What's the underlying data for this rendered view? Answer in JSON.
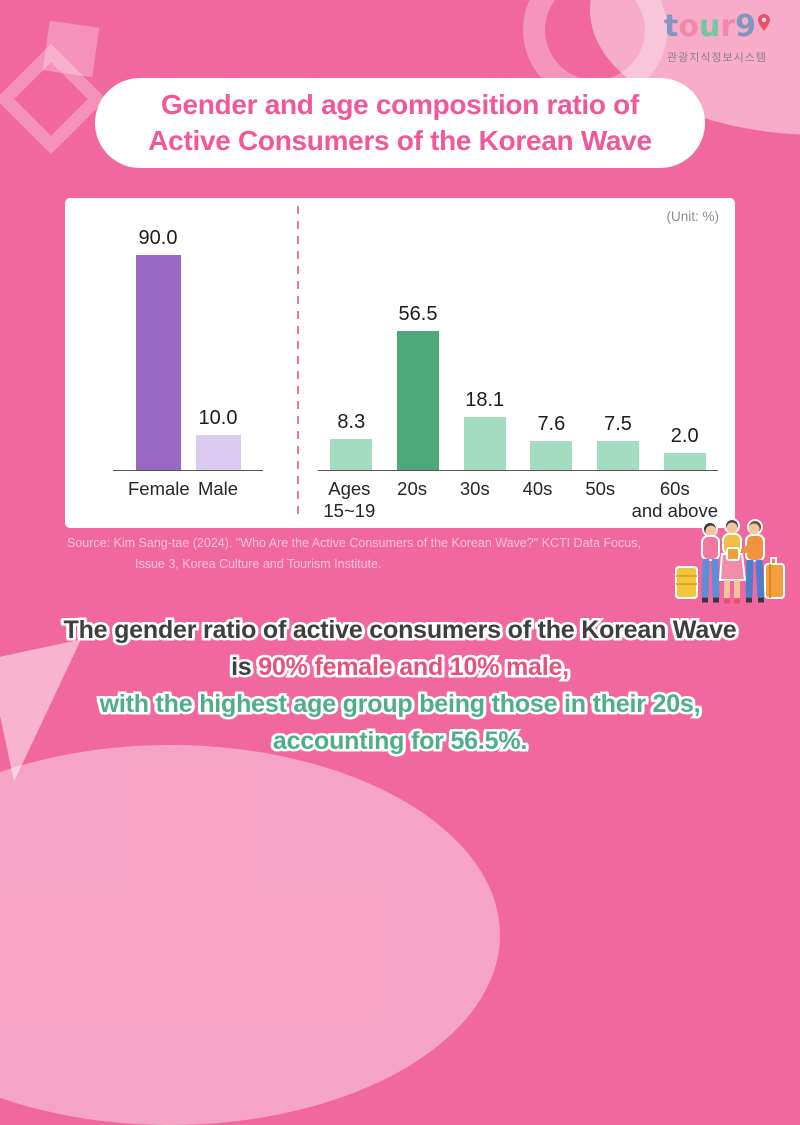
{
  "logo": {
    "letters": [
      {
        "ch": "t",
        "color": "#8596BE"
      },
      {
        "ch": "o",
        "color": "#F287AC"
      },
      {
        "ch": "u",
        "color": "#74C6A0"
      },
      {
        "ch": "r",
        "color": "#F287AC"
      },
      {
        "ch": "9",
        "color": "#8596BE"
      }
    ],
    "pin_color": "#E8526B",
    "subtitle": "관광지식정보시스템"
  },
  "title": {
    "line1": "Gender and age composition ratio of",
    "line2": "Active Consumers of the Korean Wave"
  },
  "unit_label": "(Unit: %)",
  "chart_data": [
    {
      "name": "gender",
      "type": "bar",
      "categories": [
        "Female",
        "Male"
      ],
      "categories_lines": [
        [
          "Female"
        ],
        [
          "Male"
        ]
      ],
      "values": [
        90.0,
        10.0
      ],
      "value_labels": [
        "90.0",
        "10.0"
      ],
      "bar_colors": [
        "#9768C4",
        "#DCCBF1"
      ],
      "unit": "%",
      "ylim": [
        0,
        100
      ],
      "grid": false,
      "legend": "none"
    },
    {
      "name": "age",
      "type": "bar",
      "categories": [
        "Ages 15~19",
        "20s",
        "30s",
        "40s",
        "50s",
        "60s and above"
      ],
      "categories_lines": [
        [
          "Ages",
          "15~19"
        ],
        [
          "20s"
        ],
        [
          "30s"
        ],
        [
          "40s"
        ],
        [
          "50s"
        ],
        [
          "60s",
          "and above"
        ]
      ],
      "values": [
        8.3,
        56.5,
        18.1,
        7.6,
        7.5,
        2.0
      ],
      "value_labels": [
        "8.3",
        "56.5",
        "18.1",
        "7.6",
        "7.5",
        "2.0"
      ],
      "bar_colors": [
        "#A3DCC1",
        "#4EA87C",
        "#A3DCC1",
        "#A3DCC1",
        "#A3DCC1",
        "#A3DCC1"
      ],
      "unit": "%",
      "ylim": [
        0,
        60
      ],
      "grid": false,
      "legend": "none"
    }
  ],
  "source": {
    "line1": "Source: Kim Sang-tae (2024). \"Who Are the Active Consumers of the Korean Wave?\" KCTI Data Focus,",
    "line2": "Issue 3, Korea Culture and Tourism Institute."
  },
  "summary": {
    "line1": "The gender ratio of active consumers of the Korean Wave",
    "line2_prefix": "is ",
    "line2_highlight": "90% female and 10% male,",
    "line3": "with the highest age group being those in their 20s,",
    "line4": "accounting for 56.5%."
  },
  "colors": {
    "background_pink": "#F1689E",
    "title_pink": "#F2579B",
    "divider_pink": "#F173A4",
    "bar_female": "#9768C4",
    "bar_male": "#DCCBF1",
    "bar_age": "#A3DCC1",
    "bar_age_highlight": "#4EA87C",
    "summary_dark": "#3E3E3E",
    "summary_rose": "#E6507A",
    "summary_green": "#4FAE87",
    "source_text": "#F9C3D8"
  }
}
